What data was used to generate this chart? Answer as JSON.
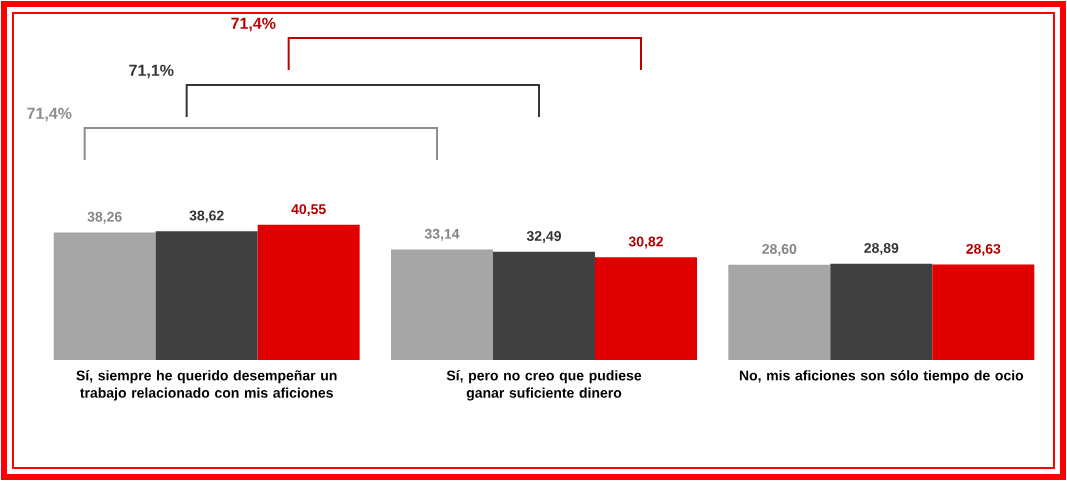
{
  "chart_data": {
    "type": "bar",
    "categories": [
      "Sí, siempre he querido desempeñar un trabajo relacionado con mis aficiones",
      "Sí, pero no creo que pudiese ganar suficiente dinero",
      "No, mis aficiones son sólo tiempo de ocio"
    ],
    "series": [
      {
        "color": "#a6a6a6",
        "values": [
          38.26,
          33.14,
          28.6
        ],
        "value_labels": [
          "38,26",
          "33,14",
          "28,60"
        ]
      },
      {
        "color": "#404040",
        "values": [
          38.62,
          32.49,
          28.89
        ],
        "value_labels": [
          "38,62",
          "32,49",
          "28,89"
        ]
      },
      {
        "color": "#e00000",
        "values": [
          40.55,
          30.82,
          28.63
        ],
        "value_labels": [
          "40,55",
          "30,82",
          "28,63"
        ]
      }
    ],
    "annotations": [
      "71,4%",
      "71,1%",
      "71,4%"
    ]
  }
}
